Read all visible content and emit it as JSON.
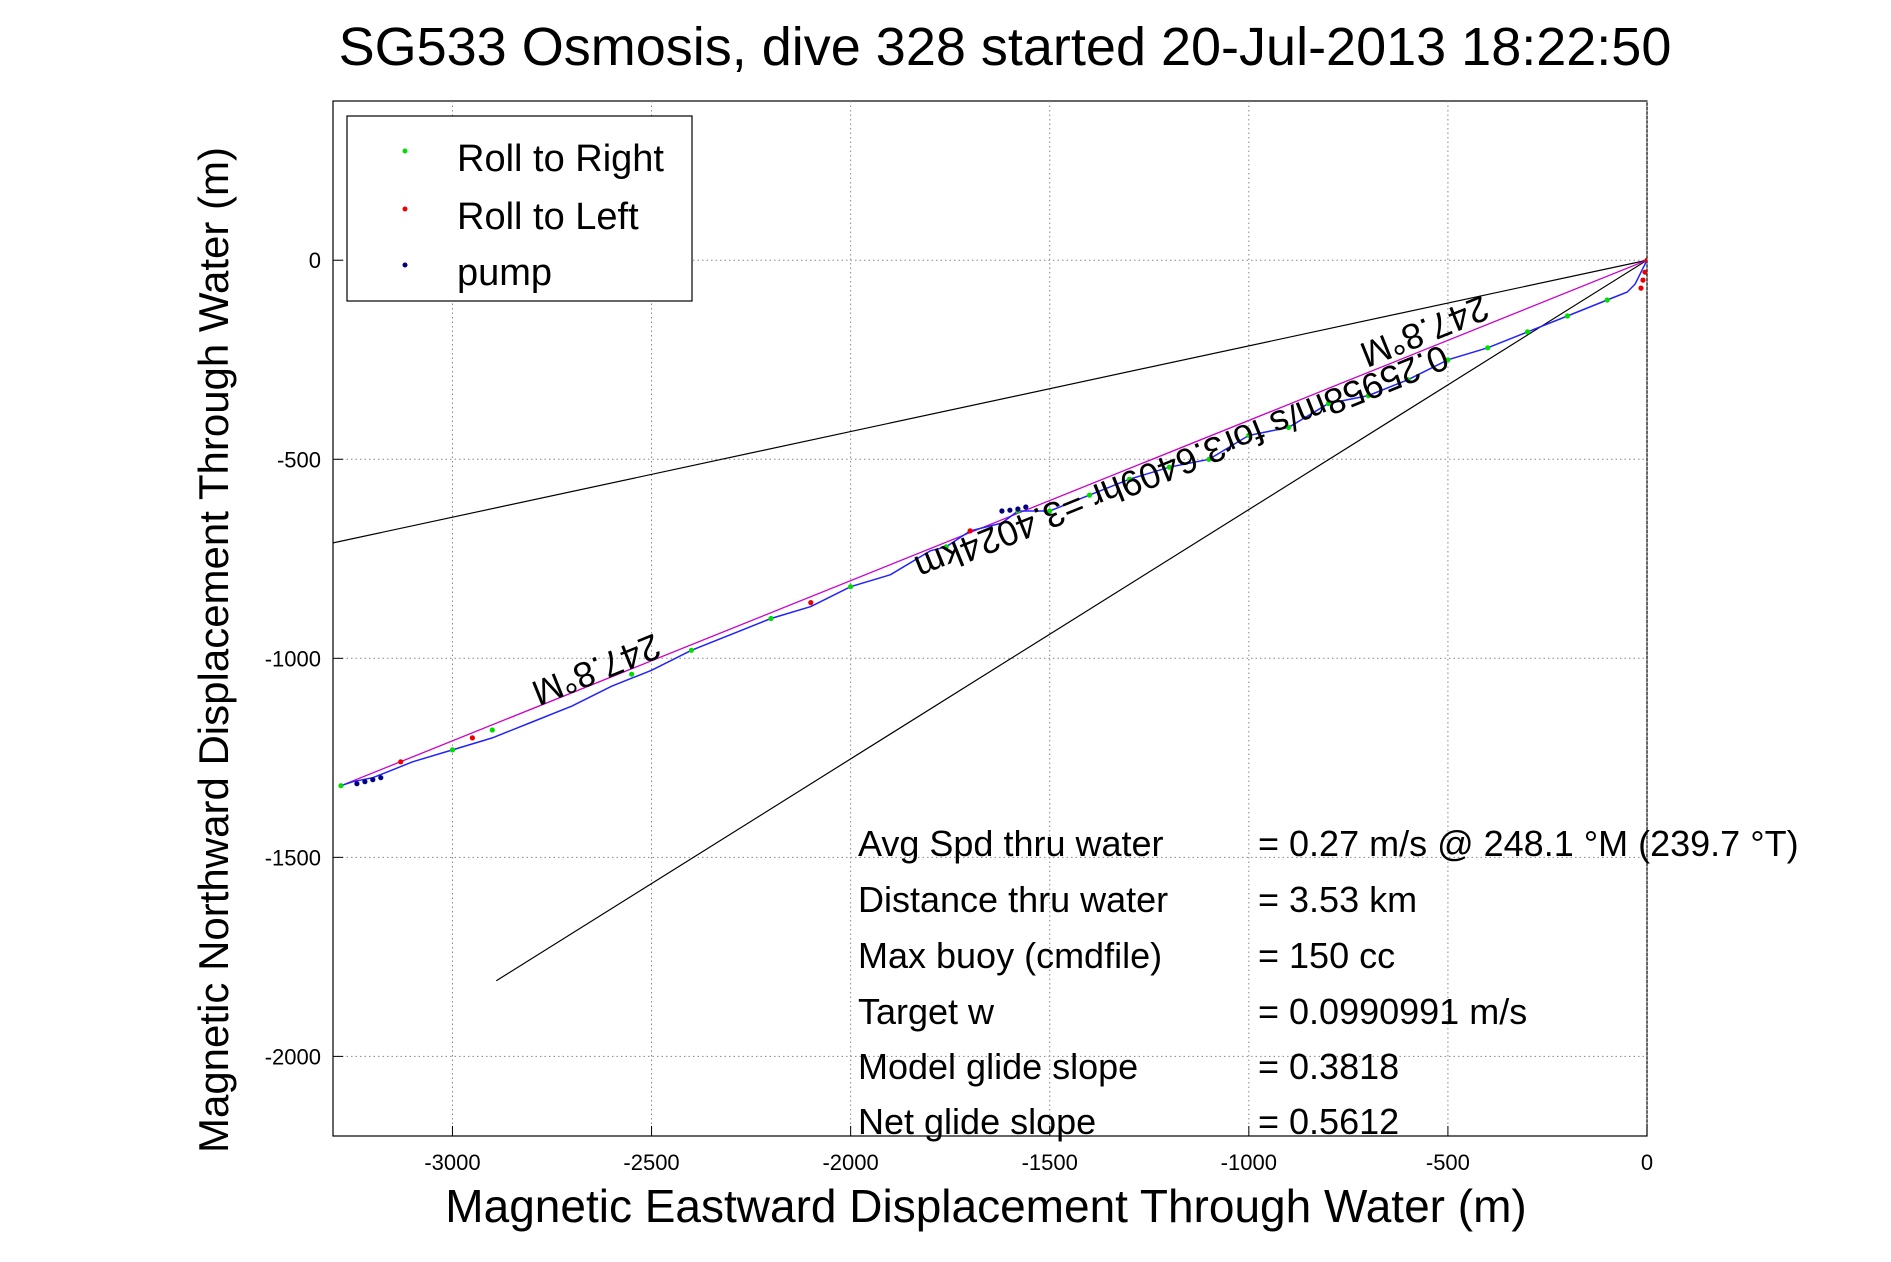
{
  "chart_data": {
    "type": "line",
    "title": "SG533 Osmosis, dive 328 started 20-Jul-2013 18:22:50",
    "xlabel": "Magnetic Eastward Displacement Through Water (m)",
    "ylabel": "Magnetic Northward Displacement Through Water (m)",
    "xlim": [
      -3300,
      0
    ],
    "ylim": [
      -2200,
      400
    ],
    "xticks": [
      -3000,
      -2500,
      -2000,
      -1500,
      -1000,
      -500,
      0
    ],
    "yticks": [
      -2000,
      -1500,
      -1000,
      -500,
      0
    ],
    "xtick_labels": [
      "-3000",
      "-2500",
      "-2000",
      "-1500",
      "-1000",
      "-500",
      "0"
    ],
    "ytick_labels": [
      "-2000",
      "-1500",
      "-1000",
      "-500",
      "0"
    ],
    "grid": true,
    "legend": {
      "placement": "top-left",
      "entries": [
        {
          "label": "Roll to Right",
          "color": "#00dd00"
        },
        {
          "label": "Roll to Left",
          "color": "#ee0000"
        },
        {
          "label": "pump",
          "color": "#000080"
        }
      ]
    },
    "track": {
      "color": "#2222ff",
      "x": [
        0,
        -10,
        -30,
        -50,
        -100,
        -200,
        -300,
        -400,
        -500,
        -600,
        -700,
        -800,
        -900,
        -1000,
        -1100,
        -1200,
        -1300,
        -1400,
        -1500,
        -1580,
        -1620,
        -1700,
        -1760,
        -1800,
        -1900,
        -2000,
        -2100,
        -2200,
        -2300,
        -2400,
        -2500,
        -2600,
        -2700,
        -2800,
        -2900,
        -3000,
        -3100,
        -3150,
        -3200,
        -3250,
        -3280
      ],
      "y": [
        0,
        -20,
        -60,
        -80,
        -100,
        -140,
        -180,
        -220,
        -250,
        -300,
        -340,
        -360,
        -420,
        -440,
        -500,
        -520,
        -550,
        -590,
        -630,
        -630,
        -660,
        -680,
        -720,
        -730,
        -790,
        -820,
        -870,
        -900,
        -940,
        -980,
        -1030,
        -1070,
        -1120,
        -1160,
        -1200,
        -1230,
        -1260,
        -1280,
        -1300,
        -1310,
        -1320
      ]
    },
    "roll_right": {
      "color": "#00dd00",
      "x": [
        -100,
        -200,
        -300,
        -400,
        -500,
        -600,
        -700,
        -800,
        -900,
        -1000,
        -1100,
        -1200,
        -1300,
        -1400,
        -1500,
        -1580,
        -1760,
        -2000,
        -2200,
        -2400,
        -2550,
        -2900,
        -3000,
        -3280
      ],
      "y": [
        -100,
        -140,
        -180,
        -220,
        -250,
        -300,
        -340,
        -360,
        -420,
        -440,
        -500,
        -520,
        -550,
        -590,
        -630,
        -630,
        -720,
        -820,
        -900,
        -980,
        -1040,
        -1180,
        -1230,
        -1320
      ]
    },
    "roll_left": {
      "color": "#ee0000",
      "x": [
        0,
        -5,
        -10,
        -15,
        -1700,
        -2100,
        -2950,
        -3130
      ],
      "y": [
        0,
        -30,
        -50,
        -70,
        -680,
        -860,
        -1200,
        -1260
      ]
    },
    "pump": {
      "color": "#000080",
      "x": [
        -1560,
        -1580,
        -1600,
        -1620,
        -3180,
        -3200,
        -3220,
        -3240
      ],
      "y": [
        -620,
        -625,
        -628,
        -630,
        -1300,
        -1305,
        -1310,
        -1315
      ]
    },
    "heading_line": {
      "color": "#cc00cc",
      "x": [
        0,
        -3280
      ],
      "y": [
        0,
        -1320
      ]
    },
    "cone_lines": [
      {
        "color": "#000000",
        "x": [
          0,
          -3300
        ],
        "y": [
          0,
          -710
        ]
      },
      {
        "color": "#000000",
        "x": [
          0,
          -2890
        ],
        "y": [
          0,
          -1810
        ]
      }
    ],
    "annotations": [
      {
        "text": "247.8°M",
        "x": -2650,
        "y": -1000,
        "angle": 158
      },
      {
        "text": "247.8°M",
        "x": -570,
        "y": -150,
        "angle": 158
      },
      {
        "text": "0.25958m/s for3.6409hr =3.4024km",
        "x": -1180,
        "y": -480,
        "angle": 158
      }
    ],
    "stats": [
      {
        "label": "Avg Spd thru water",
        "value": "=  0.27 m/s @ 248.1 °M (239.7 °T)"
      },
      {
        "label": "Distance thru water",
        "value": "=  3.53 km"
      },
      {
        "label": "Max buoy (cmdfile)",
        "value": "= 150 cc"
      },
      {
        "label": "Target w",
        "value": "= 0.0990991 m/s"
      },
      {
        "label": "Model glide slope",
        "value": "= 0.3818"
      },
      {
        "label": "Net glide slope",
        "value": "= 0.5612"
      }
    ]
  }
}
